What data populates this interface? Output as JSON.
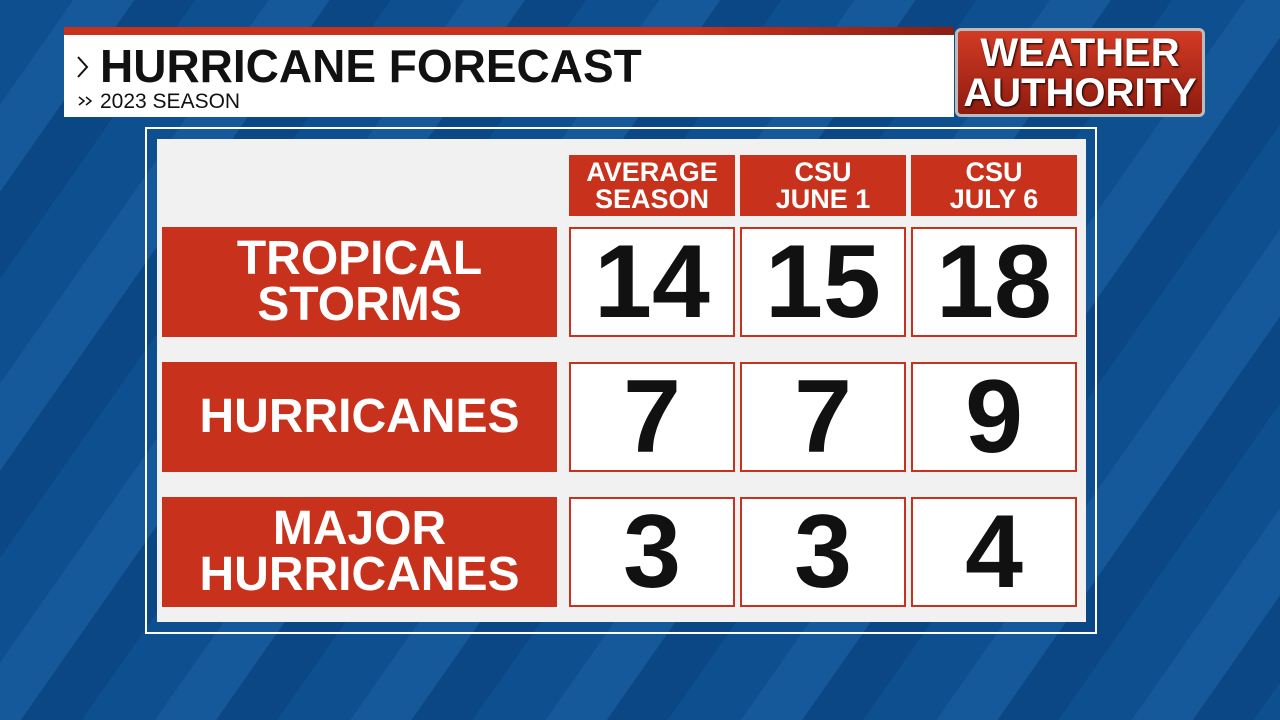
{
  "header": {
    "title": "HURRICANE FORECAST",
    "subtitle": "2023 SEASON"
  },
  "logo": {
    "lines": [
      "WEATHER",
      "AUTHORITY"
    ]
  },
  "table": {
    "columns": [
      [
        "AVERAGE",
        "SEASON"
      ],
      [
        "CSU",
        "JUNE 1"
      ],
      [
        "CSU",
        "JULY 6"
      ]
    ],
    "rows": [
      {
        "label": [
          "TROPICAL",
          "STORMS"
        ],
        "values": [
          14,
          15,
          18
        ]
      },
      {
        "label": [
          "HURRICANES"
        ],
        "values": [
          7,
          7,
          9
        ]
      },
      {
        "label": [
          "MAJOR",
          "HURRICANES"
        ],
        "values": [
          3,
          3,
          4
        ]
      }
    ]
  }
}
